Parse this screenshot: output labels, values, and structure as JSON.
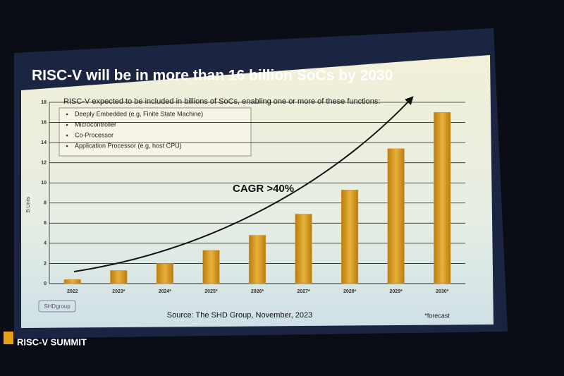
{
  "chart_data": {
    "type": "bar",
    "title": "RISC-V will be in more than 16 billion SoCs by 2030",
    "subtitle": "RISC-V expected to be included in billions of SoCs, enabling one or more of these functions:",
    "functions": [
      "Deeply Embedded (e.g, Finite State Machine)",
      "Microcontroller",
      "Co-Processor",
      "Application Processor (e.g, host CPU)"
    ],
    "y_label": "B Units",
    "annotation": "CAGR >40%",
    "source": "Source: The SHD Group, November, 2023",
    "footnote": "*forecast",
    "logo": "SHDgroup",
    "event": "RISC-V SUMMIT",
    "categories": [
      "2022",
      "2023*",
      "2024*",
      "2025*",
      "2026*",
      "2027*",
      "2028*",
      "2029*",
      "2030*"
    ],
    "values": [
      0.4,
      1.3,
      2.0,
      3.3,
      4.8,
      6.9,
      9.3,
      13.4,
      17.0
    ],
    "color": "#d99a1c",
    "ylim": [
      0,
      18
    ],
    "yticks": [
      0,
      2,
      4,
      6,
      8,
      10,
      12,
      14,
      16,
      18
    ],
    "grid": true
  }
}
